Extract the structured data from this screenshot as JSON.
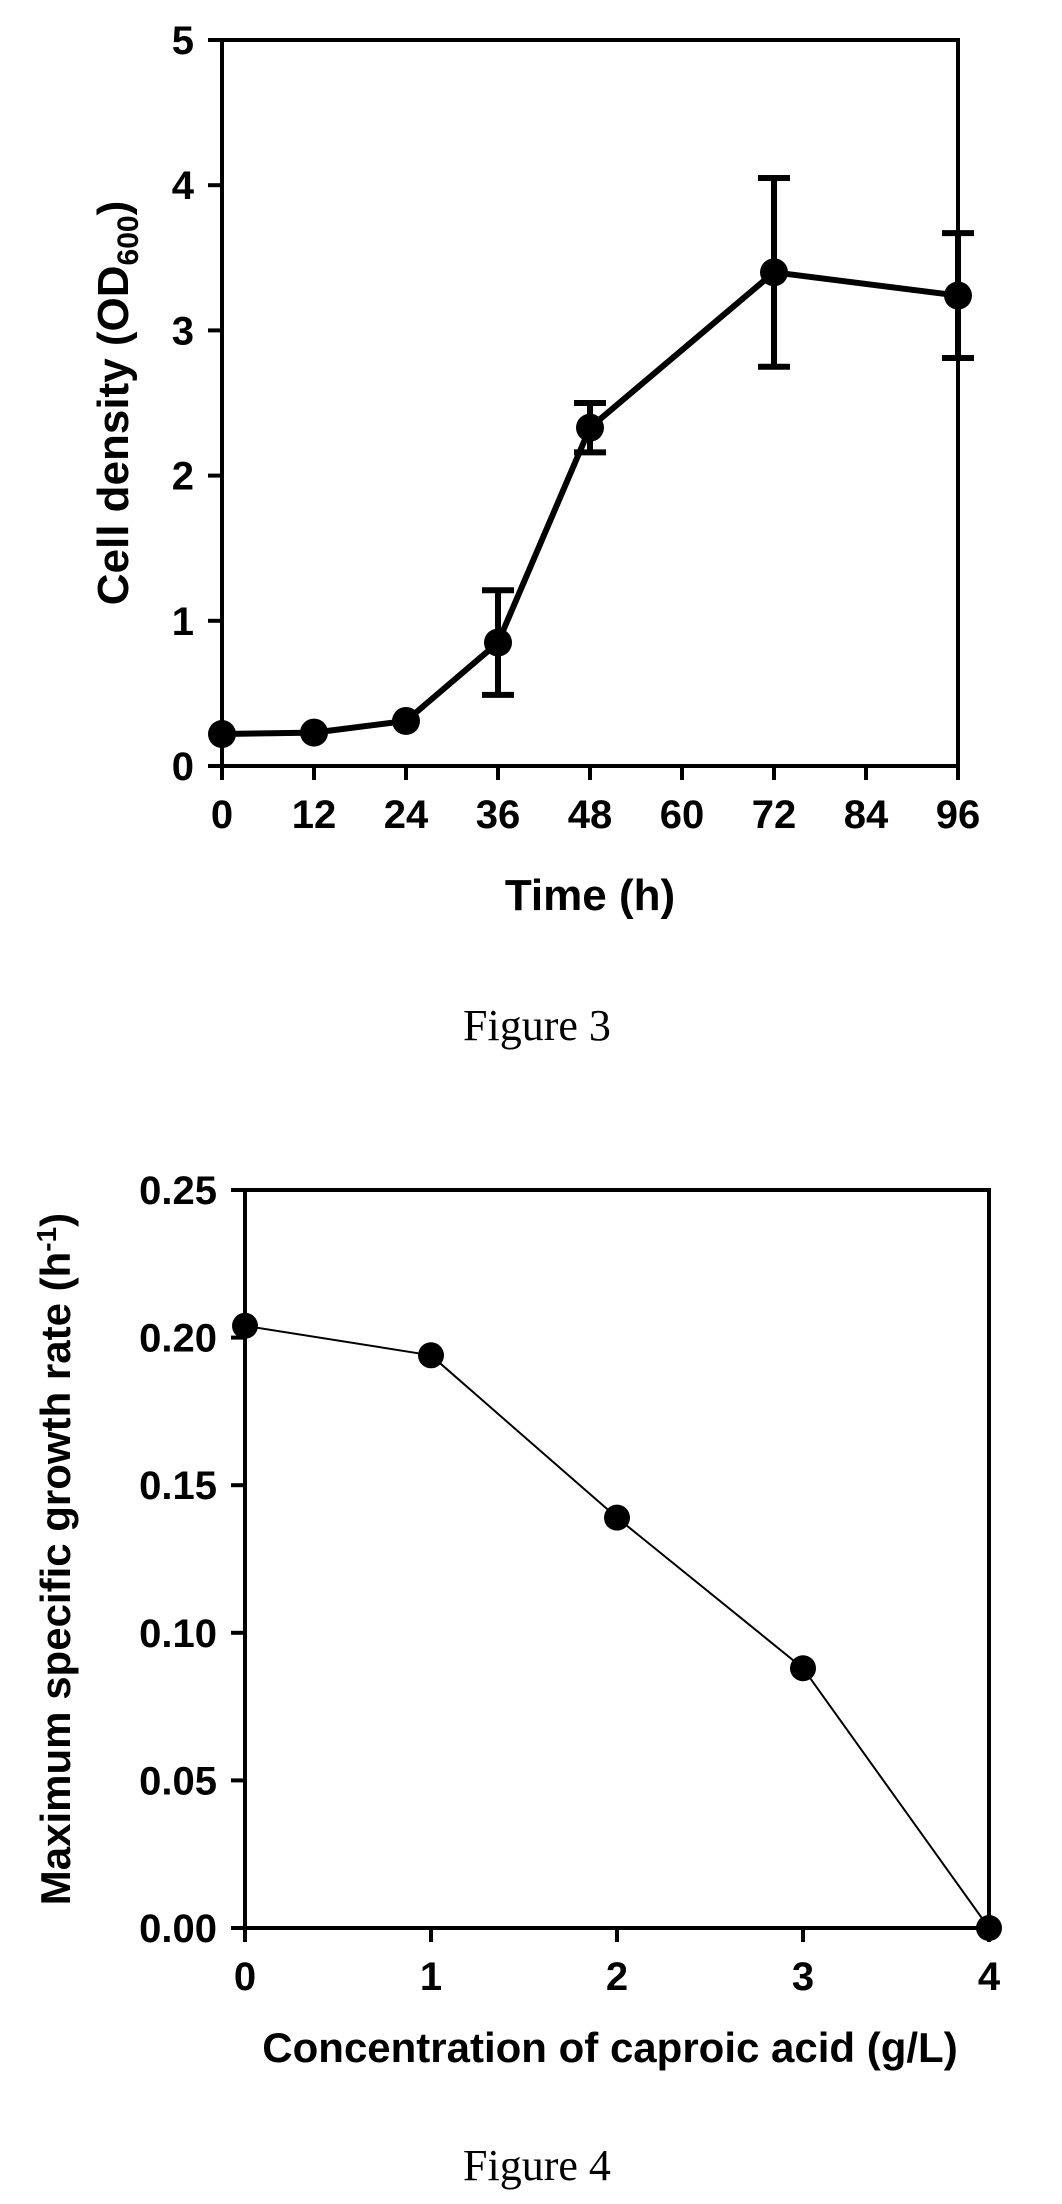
{
  "chart_data": [
    {
      "type": "line",
      "ylabel": "Cell density (OD",
      "ylabel_sub": "600",
      "ylabel_suffix": ")",
      "xlabel": "Time (h)",
      "caption": "Figure 3",
      "xlim": [
        0,
        96
      ],
      "ylim": [
        0,
        5
      ],
      "xticks": [
        0,
        12,
        24,
        36,
        48,
        60,
        72,
        84,
        96
      ],
      "yticks": [
        0,
        1,
        2,
        3,
        4,
        5
      ],
      "ytick_labels": [
        "0",
        "1",
        "2",
        "3",
        "4",
        "5"
      ],
      "grid": false,
      "series": [
        {
          "x": [
            0,
            12,
            24,
            36,
            48,
            72,
            96
          ],
          "y": [
            0.22,
            0.23,
            0.31,
            0.85,
            2.33,
            3.4,
            3.24
          ],
          "error": [
            0,
            0,
            0,
            0.36,
            0.17,
            0.65,
            0.43
          ]
        }
      ]
    },
    {
      "type": "line",
      "ylabel": "Maximum specific growth rate (h",
      "ylabel_sup": "-1",
      "ylabel_suffix": ")",
      "xlabel": "Concentration of caproic acid (g/L)",
      "caption": "Figure 4",
      "xlim": [
        0,
        4
      ],
      "ylim": [
        0,
        0.25
      ],
      "xticks": [
        0,
        1,
        2,
        3,
        4
      ],
      "yticks": [
        0,
        0.05,
        0.1,
        0.15,
        0.2,
        0.25
      ],
      "ytick_labels": [
        "0.00",
        "0.05",
        "0.10",
        "0.15",
        "0.20",
        "0.25"
      ],
      "grid": false,
      "series": [
        {
          "x": [
            0,
            1,
            2,
            3,
            4
          ],
          "y": [
            0.204,
            0.194,
            0.139,
            0.088,
            0.0
          ]
        }
      ]
    }
  ]
}
